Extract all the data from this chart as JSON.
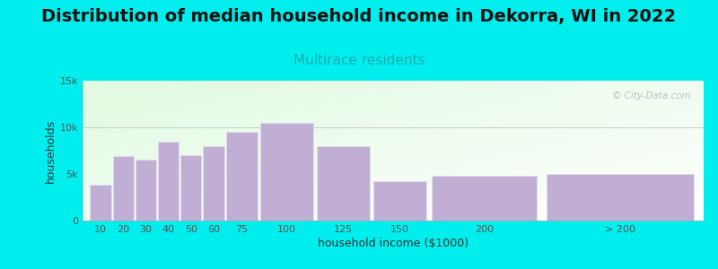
{
  "title": "Distribution of median household income in Dekorra, WI in 2022",
  "subtitle": "Multirace residents",
  "xlabel": "household income ($1000)",
  "ylabel": "households",
  "background_outer": "#00EEEE",
  "bar_color": "#c0aed4",
  "bar_edge_color": "#e8e0f0",
  "categories": [
    "10",
    "20",
    "30",
    "40",
    "50",
    "60",
    "75",
    "100",
    "125",
    "150",
    "200",
    "> 200"
  ],
  "values": [
    3800,
    6900,
    6500,
    8500,
    7000,
    8000,
    9500,
    10500,
    8000,
    4200,
    4800,
    5000
  ],
  "income_starts": [
    0,
    10,
    20,
    30,
    40,
    50,
    60,
    75,
    100,
    125,
    150,
    200
  ],
  "income_widths": [
    10,
    10,
    10,
    10,
    10,
    10,
    15,
    25,
    25,
    25,
    50,
    70
  ],
  "xlim_min": -3,
  "xlim_max": 272,
  "ylim": [
    0,
    15000
  ],
  "yticks": [
    0,
    5000,
    10000,
    15000
  ],
  "ytick_labels": [
    "0",
    "5k",
    "10k",
    "15k"
  ],
  "title_fontsize": 14,
  "subtitle_fontsize": 11,
  "subtitle_color": "#1aaeae",
  "axis_label_fontsize": 9,
  "tick_fontsize": 8,
  "watermark_text": "© City-Data.com",
  "watermark_color": "#aababa"
}
